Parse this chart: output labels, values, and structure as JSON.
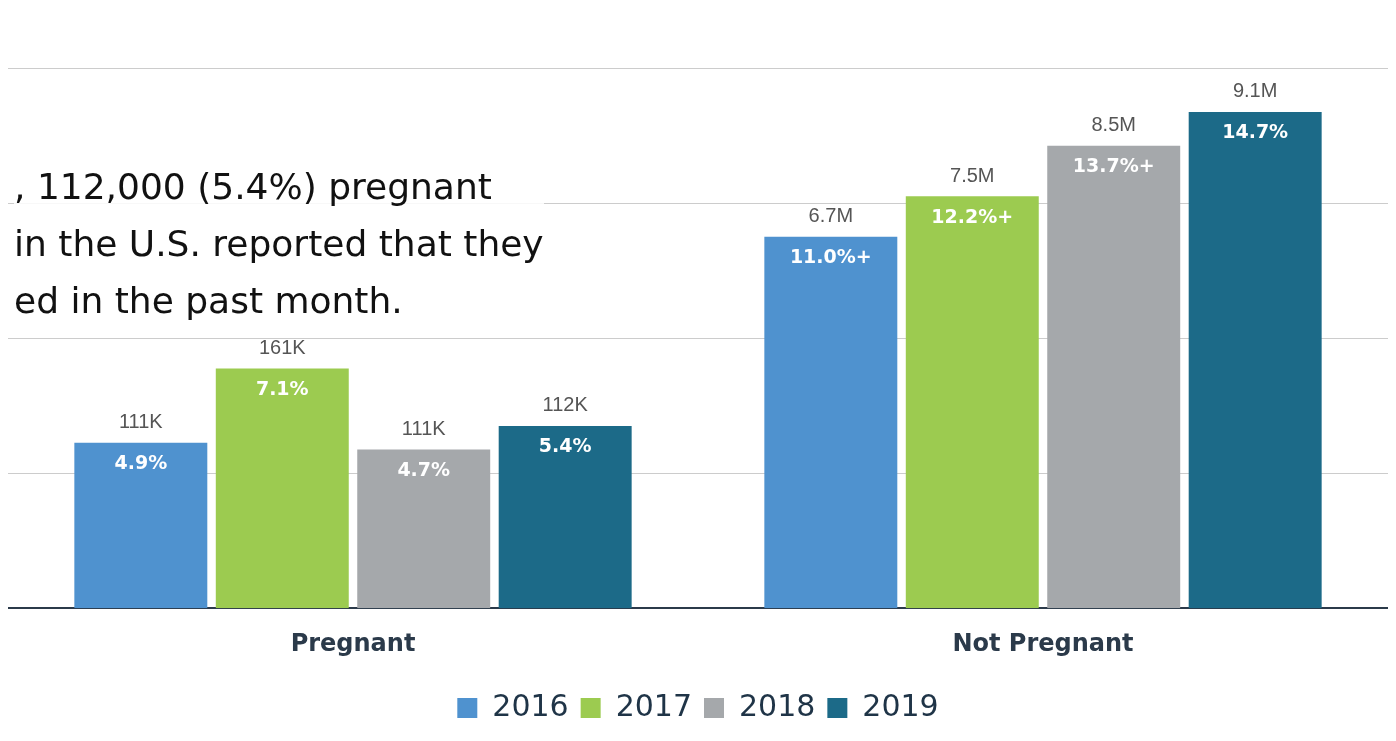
{
  "chart_data": {
    "type": "bar",
    "categories": [
      "Pregnant",
      "Not Pregnant"
    ],
    "series": [
      {
        "name": "2016",
        "color": "#4f92cf",
        "values": [
          4.9,
          11.0
        ],
        "value_labels": [
          "4.9%",
          "11.0%+"
        ]
      },
      {
        "name": "2017",
        "color": "#9ccb50",
        "values": [
          7.1,
          12.2
        ],
        "value_labels": [
          "7.1%",
          "12.2%+"
        ]
      },
      {
        "name": "2018",
        "color": "#a5a8ab",
        "values": [
          4.7,
          13.7
        ],
        "value_labels": [
          "4.7%",
          "13.7%+"
        ]
      },
      {
        "name": "2019",
        "color": "#1c6a88",
        "values": [
          5.4,
          14.7
        ],
        "value_labels": [
          "5.4%",
          "14.7%"
        ]
      }
    ],
    "title": ", 112,000 (5.4%) pregnant\nin the U.S. reported that they\ned in the past month.",
    "yticks": [
      {
        "value": 4,
        "label": null
      },
      {
        "value": 8,
        "label": null
      },
      {
        "value": 12,
        "label": null
      },
      {
        "value": 16,
        "label": null
      }
    ],
    "tick_labels": "x",
    "grid": "y",
    "legend": "bottom",
    "annotations": [
      "111K",
      "161K",
      "111K",
      "112K",
      "6.7M",
      "7.5M",
      "8.5M",
      "9.1M"
    ]
  }
}
